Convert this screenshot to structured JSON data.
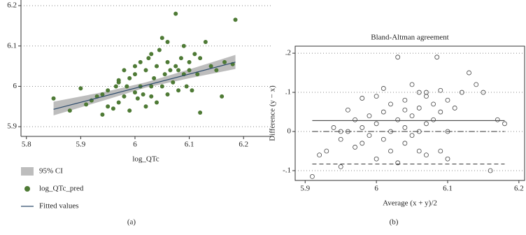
{
  "chart_data": [
    {
      "type": "scatter",
      "title": "",
      "xlabel": "log_QTc",
      "caption": "(a)",
      "xlim": [
        5.79,
        6.25
      ],
      "ylim": [
        5.876,
        6.214
      ],
      "xticks": [
        5.8,
        5.9,
        6,
        6.1,
        6.2
      ],
      "yticks": [
        5.9,
        6,
        6.1,
        6.2
      ],
      "grid": true,
      "ci": {
        "name": "95% CI",
        "color": "#bdbdbd",
        "x": [
          5.85,
          5.95,
          6.02,
          6.1,
          6.185
        ],
        "lower": [
          5.928,
          5.968,
          5.997,
          6.02,
          6.043
        ],
        "upper": [
          5.962,
          5.988,
          6.01,
          6.042,
          6.078
        ]
      },
      "series": [
        {
          "name": "log_QTc_pred",
          "color": "#4e7a35",
          "x": [
            5.85,
            5.88,
            5.9,
            5.91,
            5.93,
            5.94,
            5.95,
            5.95,
            5.96,
            5.965,
            5.97,
            5.97,
            5.98,
            5.98,
            5.985,
            5.99,
            5.99,
            6.0,
            6.0,
            6.005,
            6.01,
            6.01,
            6.015,
            6.02,
            6.02,
            6.025,
            6.03,
            6.03,
            6.035,
            6.04,
            6.04,
            6.045,
            6.05,
            6.05,
            6.055,
            6.06,
            6.06,
            6.065,
            6.07,
            6.075,
            6.075,
            6.08,
            6.085,
            6.09,
            6.09,
            6.095,
            6.1,
            6.1,
            6.105,
            6.11,
            6.115,
            6.12,
            6.12,
            6.13,
            6.14,
            6.15,
            6.16,
            6.165,
            6.18,
            6.185,
            5.92,
            5.94,
            6.0,
            6.06,
            5.97,
            6.03,
            6.08
          ],
          "values": [
            5.97,
            5.94,
            5.995,
            5.955,
            5.975,
            5.98,
            5.95,
            5.99,
            5.945,
            6.0,
            6.01,
            5.96,
            5.975,
            6.04,
            6.0,
            5.94,
            6.02,
            5.985,
            6.05,
            5.97,
            6.06,
            6.0,
            5.98,
            6.04,
            5.95,
            6.07,
            6.0,
            5.975,
            6.02,
            6.05,
            5.96,
            6.09,
            6.12,
            6.0,
            6.03,
            6.06,
            5.98,
            6.04,
            6.01,
            6.18,
            6.05,
            5.99,
            6.07,
            6.03,
            6.1,
            6.0,
            6.06,
            6.04,
            5.99,
            6.08,
            6.03,
            5.935,
            6.07,
            6.11,
            6.05,
            6.04,
            5.975,
            6.06,
            6.055,
            6.165,
            5.965,
            5.93,
            6.03,
            6.11,
            6.015,
            6.08,
            6.04
          ]
        }
      ],
      "fit": {
        "name": "Fitted values",
        "color": "#2c4a6b",
        "x": [
          5.85,
          6.185
        ],
        "values": [
          5.943,
          6.06
        ]
      }
    },
    {
      "type": "scatter",
      "title": "Bland-Altman agreement",
      "xlabel": "Average (x + y)/2",
      "ylabel": "Difference (y − x)",
      "caption": "(b)",
      "xlim": [
        5.886,
        6.208
      ],
      "ylim": [
        -0.125,
        0.218
      ],
      "xticks": [
        5.9,
        6,
        6.1,
        6.2
      ],
      "yticks": [
        {
          "value": -0.1,
          "label": "-.1"
        },
        0,
        {
          "value": 0.1,
          "label": ".1"
        },
        {
          "value": 0.2,
          "label": ".2"
        }
      ],
      "grid": true,
      "series": [
        {
          "name": "",
          "color": "#444444",
          "x": [
            5.91,
            5.92,
            5.93,
            5.94,
            5.95,
            5.95,
            5.96,
            5.96,
            5.97,
            5.97,
            5.98,
            5.98,
            5.99,
            5.99,
            6.0,
            6.0,
            6.0,
            6.01,
            6.01,
            6.02,
            6.02,
            6.02,
            6.03,
            6.03,
            6.03,
            6.04,
            6.04,
            6.04,
            6.05,
            6.05,
            6.05,
            6.06,
            6.06,
            6.06,
            6.06,
            6.07,
            6.07,
            6.07,
            6.08,
            6.08,
            6.085,
            6.09,
            6.09,
            6.09,
            6.1,
            6.1,
            6.1,
            6.11,
            6.12,
            6.13,
            6.14,
            6.15,
            6.16,
            6.17,
            6.18,
            5.98,
            6.01,
            5.95,
            6.04,
            6.07
          ],
          "values": [
            -0.115,
            -0.06,
            -0.05,
            0.01,
            -0.09,
            -0.02,
            0.055,
            0.0,
            -0.04,
            0.03,
            0.01,
            -0.03,
            0.04,
            -0.01,
            0.09,
            0.02,
            -0.07,
            0.05,
            -0.02,
            0.07,
            0.0,
            -0.05,
            0.19,
            0.03,
            -0.08,
            0.08,
            0.01,
            -0.03,
            0.12,
            0.04,
            -0.01,
            0.1,
            0.06,
            0.0,
            -0.05,
            0.09,
            0.02,
            -0.06,
            0.07,
            0.03,
            0.19,
            0.105,
            0.05,
            -0.05,
            0.08,
            0.0,
            -0.07,
            0.06,
            0.1,
            0.15,
            0.12,
            0.1,
            -0.1,
            0.03,
            0.02,
            0.085,
            0.11,
            0.0,
            0.055,
            0.1
          ]
        }
      ],
      "line_x": [
        5.91,
        6.18
      ],
      "reference_lines": [
        {
          "value": 0.028,
          "style": "solid"
        },
        {
          "value": 0,
          "style": "dashdot"
        },
        {
          "value": -0.083,
          "style": "dashed"
        }
      ]
    }
  ]
}
